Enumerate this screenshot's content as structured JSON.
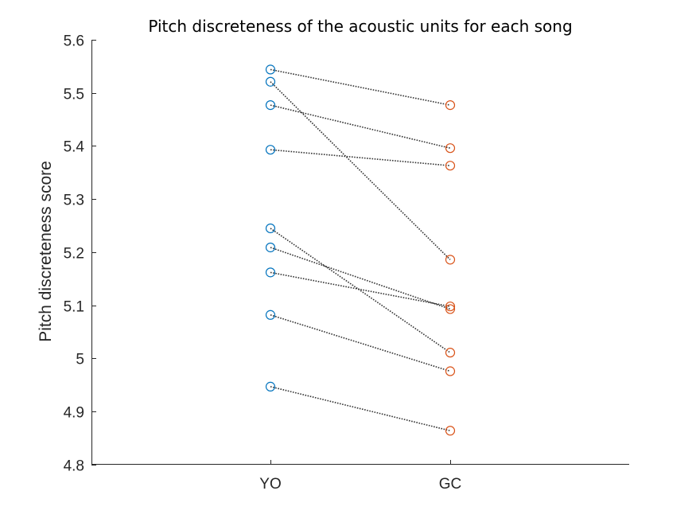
{
  "chart_data": {
    "type": "scatter",
    "title": "Pitch discreteness of the acoustic units for each song",
    "xlabel": "",
    "ylabel": "Pitch discreteness score",
    "categories": [
      "YO",
      "GC"
    ],
    "ylim": [
      4.8,
      5.6
    ],
    "yticks": [
      "4.8",
      "4.9",
      "5",
      "5.1",
      "5.2",
      "5.3",
      "5.4",
      "5.5",
      "5.6"
    ],
    "grid": false,
    "marker": "circle-open",
    "connector": "dotted",
    "colors": {
      "YO": "#0072BD",
      "GC": "#D95319",
      "line": "#333333",
      "axis": "#262626"
    },
    "pairs": [
      {
        "YO": 5.544,
        "GC": 5.477
      },
      {
        "YO": 5.521,
        "GC": 5.186
      },
      {
        "YO": 5.477,
        "GC": 5.396
      },
      {
        "YO": 5.393,
        "GC": 5.363
      },
      {
        "YO": 5.245,
        "GC": 5.011
      },
      {
        "YO": 5.209,
        "GC": 5.093
      },
      {
        "YO": 5.162,
        "GC": 5.098
      },
      {
        "YO": 5.082,
        "GC": 4.976
      },
      {
        "YO": 4.947,
        "GC": 4.864
      }
    ]
  }
}
